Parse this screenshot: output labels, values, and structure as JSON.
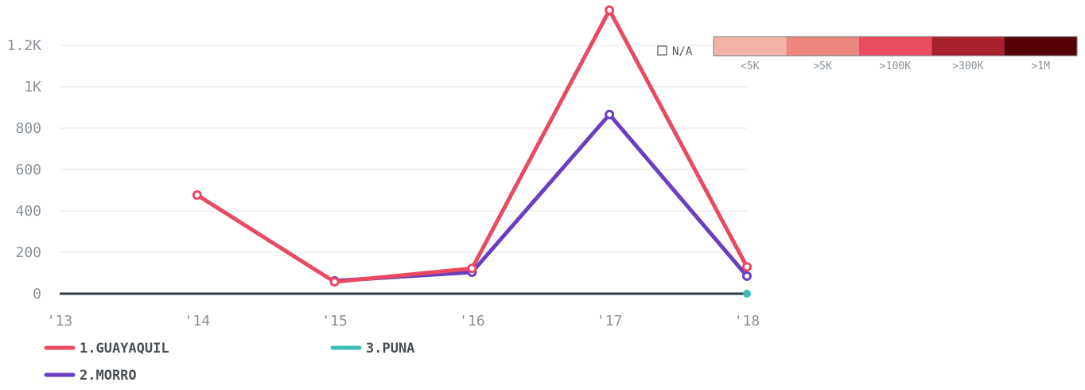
{
  "chart_data": {
    "type": "line",
    "x": [
      "'13",
      "'14",
      "'15",
      "'16",
      "'17",
      "'18"
    ],
    "ylim": [
      0,
      1300
    ],
    "yticks": [
      0,
      200,
      400,
      600,
      800,
      1000,
      1200
    ],
    "ytick_labels": [
      "0",
      "200",
      "400",
      "600",
      "800",
      "1K",
      "1.2K"
    ],
    "grid": true,
    "legend_position": "bottom-left",
    "series": [
      {
        "name": "1.GUAYAQUIL",
        "color": "#e84a62",
        "values": [
          null,
          477,
          57,
          122,
          1370,
          130
        ]
      },
      {
        "name": "2.MORRO",
        "color": "#6a3fc0",
        "values": [
          null,
          null,
          62,
          104,
          866,
          85
        ]
      },
      {
        "name": "3.PUNA",
        "color": "#3bbdb3",
        "values": [
          null,
          null,
          null,
          null,
          null,
          0
        ]
      }
    ]
  },
  "color_scale": {
    "na_label": "N/A",
    "bins": [
      {
        "label": "<5K",
        "color": "#f4b3a9"
      },
      {
        "label": ">5K",
        "color": "#ee8680"
      },
      {
        "label": ">100K",
        "color": "#ea4c62"
      },
      {
        "label": ">300K",
        "color": "#a8222e"
      },
      {
        "label": ">1M",
        "color": "#560008"
      }
    ]
  },
  "colors": {
    "axis": "#2f3b45",
    "grid": "#e6e6e6",
    "tick_text": "#8a9299",
    "legend_text": "#4a4f55"
  }
}
